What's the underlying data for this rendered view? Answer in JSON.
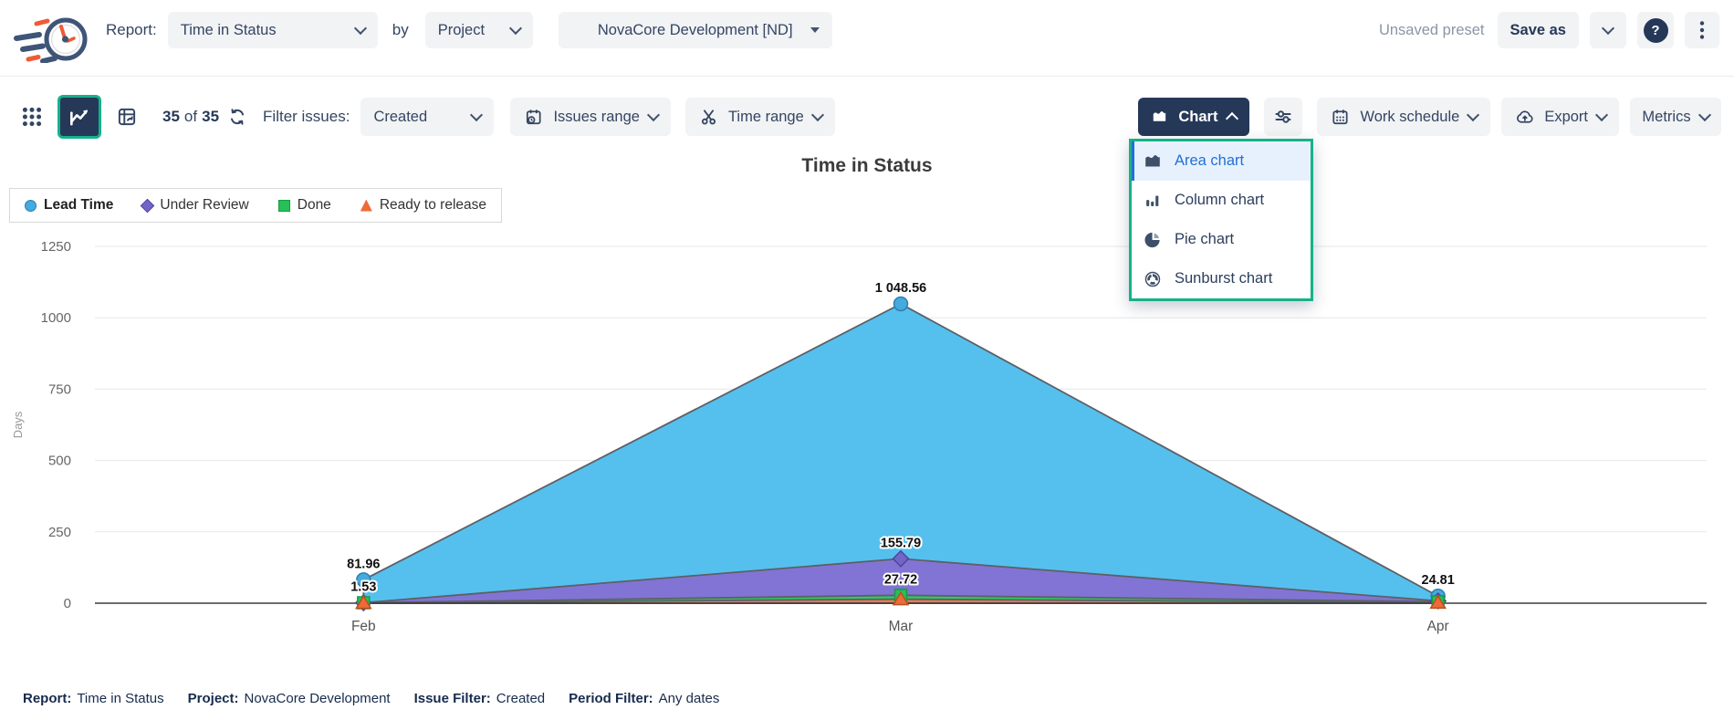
{
  "colors": {
    "accent_green": "#16b189",
    "dark_navy": "#253858",
    "selection_blue": "#2170d6",
    "button_bg": "#f2f3f5"
  },
  "header": {
    "report_label": "Report:",
    "report_value": "Time in Status",
    "by_label": "by",
    "group_by_value": "Project",
    "project_value": "NovaCore Development [ND]",
    "preset_status": "Unsaved preset",
    "save_as_label": "Save as",
    "help_glyph": "?"
  },
  "toolbar": {
    "count_current": "35",
    "count_of": "of",
    "count_total": "35",
    "filter_label": "Filter issues:",
    "filter_value": "Created",
    "issues_range_label": "Issues range",
    "time_range_label": "Time range",
    "chart_label": "Chart",
    "work_schedule_label": "Work schedule",
    "export_label": "Export",
    "metrics_label": "Metrics"
  },
  "chart_menu": {
    "items": [
      {
        "label": "Area chart",
        "selected": true
      },
      {
        "label": "Column chart",
        "selected": false
      },
      {
        "label": "Pie chart",
        "selected": false
      },
      {
        "label": "Sunburst chart",
        "selected": false
      }
    ]
  },
  "chart_data": {
    "type": "area",
    "title": "Time in Status",
    "categories": [
      "Feb",
      "Mar",
      "Apr"
    ],
    "ylabel": "Days",
    "ylim": [
      0,
      1250
    ],
    "yticks": [
      0,
      250,
      500,
      750,
      1000,
      1250
    ],
    "grid": true,
    "legend_position": "top-left",
    "series": [
      {
        "name": "Lead Time",
        "marker": "circle",
        "color": "#55c0ee",
        "marker_color": "#44aadf",
        "marker_stroke": "#2e7fae",
        "values": [
          81.96,
          1048.56,
          24.81
        ],
        "labels": [
          "81.96",
          "1 048.56",
          "24.81"
        ]
      },
      {
        "name": "Under Review",
        "marker": "diamond",
        "color": "#8274d4",
        "marker_color": "#7265c8",
        "marker_stroke": "#50459c",
        "values": [
          1.5,
          155.79,
          8
        ],
        "labels": [
          null,
          "155.79",
          null
        ]
      },
      {
        "name": "Done",
        "marker": "square",
        "color": "#2bcb62",
        "marker_color": "#25c158",
        "marker_stroke": "#179a41",
        "values": [
          1.53,
          27.72,
          5
        ],
        "labels": [
          "1.53",
          "27.72",
          null
        ]
      },
      {
        "name": "Ready to release",
        "marker": "triangle",
        "color": "#f2784b",
        "marker_color": "#ee6a38",
        "marker_stroke": "#bb4e1f",
        "values": [
          1.0,
          14,
          2
        ],
        "labels": [
          null,
          null,
          null
        ]
      }
    ]
  },
  "footer": {
    "items": [
      {
        "label": "Report:",
        "value": "Time in Status"
      },
      {
        "label": "Project:",
        "value": "NovaCore Development"
      },
      {
        "label": "Issue Filter:",
        "value": "Created"
      },
      {
        "label": "Period Filter:",
        "value": "Any dates"
      }
    ]
  }
}
